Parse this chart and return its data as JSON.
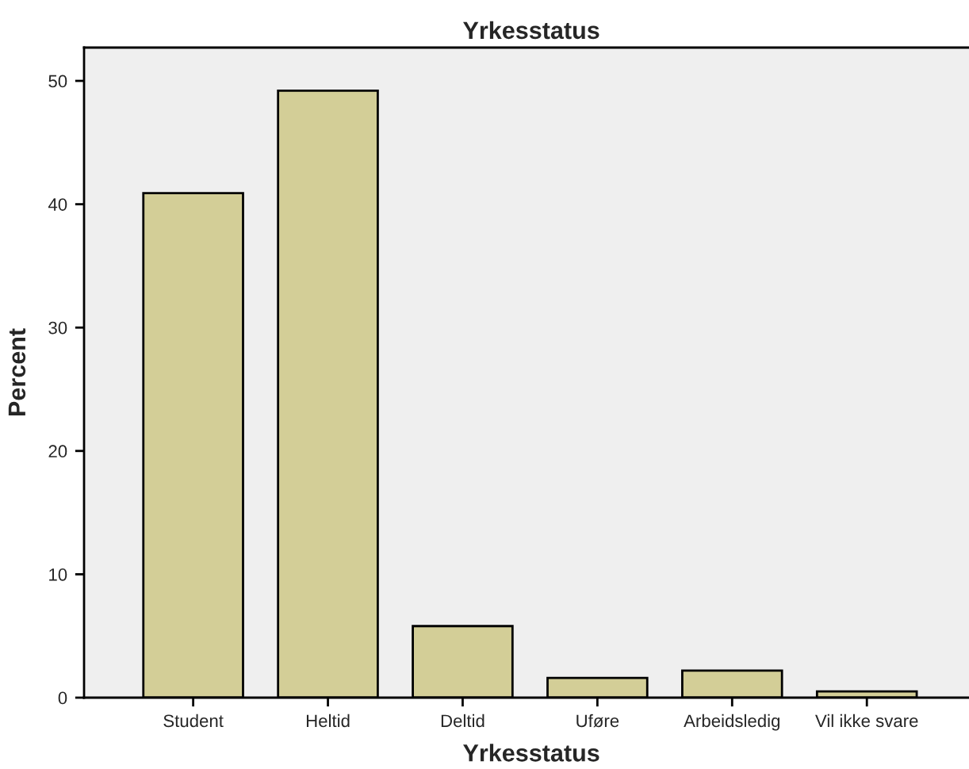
{
  "chart_data": {
    "type": "bar",
    "title": "Yrkesstatus",
    "xlabel": "Yrkesstatus",
    "ylabel": "Percent",
    "categories": [
      "Student",
      "Heltid",
      "Deltid",
      "Uføre",
      "Arbeidsledig",
      "Vil ikke svare"
    ],
    "values": [
      40.9,
      49.2,
      5.8,
      1.6,
      2.2,
      0.5
    ],
    "color": "#d3ce97",
    "ylim": [
      0,
      52.7
    ],
    "yticks": [
      0,
      10,
      20,
      30,
      40,
      50
    ],
    "grid": false
  }
}
